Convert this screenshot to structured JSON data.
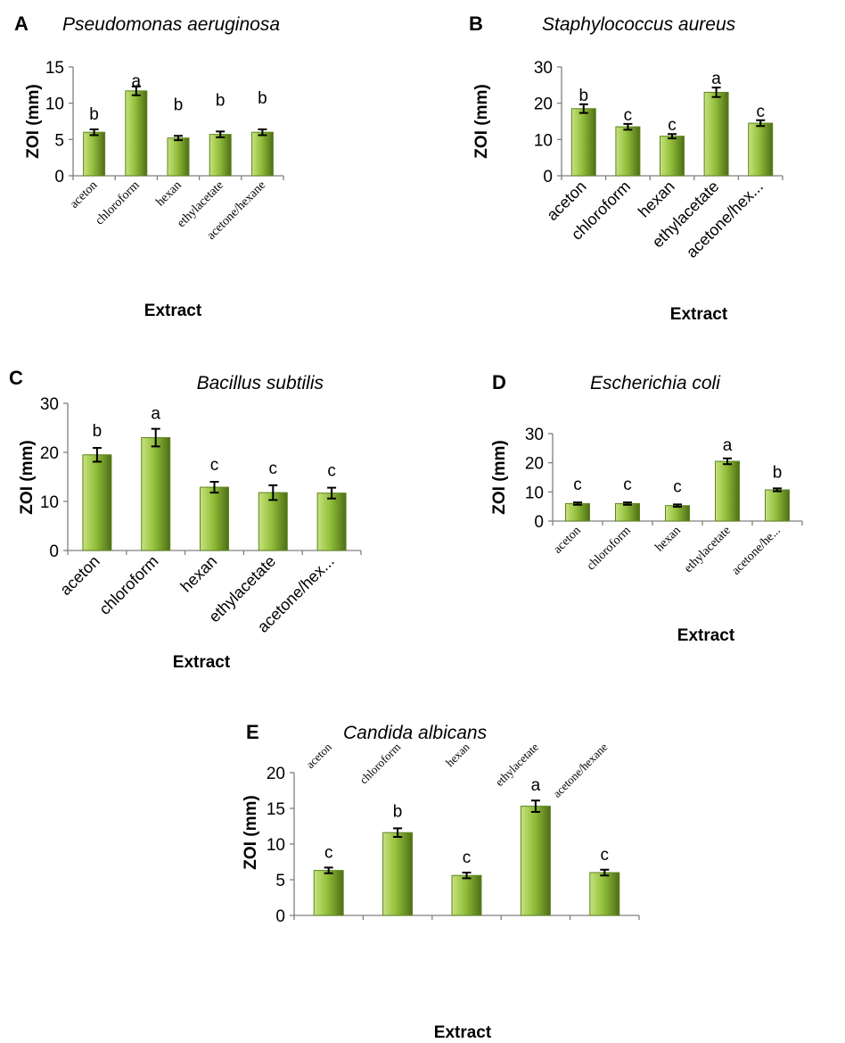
{
  "bar_color": {
    "light": "#c7e27f",
    "mid": "#92bf3a",
    "dark": "#4d6e16",
    "edge": "#5e8420"
  },
  "chart_data": [
    {
      "panel": "A",
      "type": "bar",
      "title": "Pseudomonas aeruginosa",
      "xlabel": "Extract",
      "ylabel": "ZOI (mm)",
      "ylim": [
        0,
        15
      ],
      "yticks": [
        0,
        5,
        10,
        15
      ],
      "categories": [
        "aceton",
        "chloroform",
        "hexan",
        "ethylacetate",
        "acetone/hexane"
      ],
      "values": [
        6.0,
        11.7,
        5.2,
        5.7,
        6.0
      ],
      "errors": [
        0.4,
        0.6,
        0.3,
        0.4,
        0.4
      ],
      "letters": [
        "b",
        "a",
        "b",
        "b",
        "b"
      ]
    },
    {
      "panel": "B",
      "type": "bar",
      "title": "Staphylococcus aureus",
      "xlabel": "Extract",
      "ylabel": "ZOI (mm)",
      "ylim": [
        0,
        30
      ],
      "yticks": [
        0,
        10,
        20,
        30
      ],
      "categories": [
        "aceton",
        "chloroform",
        "hexan",
        "ethylacetate",
        "acetone/hex..."
      ],
      "values": [
        18.5,
        13.5,
        10.9,
        23.0,
        14.5
      ],
      "errors": [
        1.2,
        0.8,
        0.6,
        1.3,
        0.8
      ],
      "letters": [
        "b",
        "c",
        "c",
        "a",
        "c"
      ]
    },
    {
      "panel": "C",
      "type": "bar",
      "title": "Bacillus subtilis",
      "xlabel": "Extract",
      "ylabel": "ZOI (mm)",
      "ylim": [
        0,
        30
      ],
      "yticks": [
        0,
        10,
        20,
        30
      ],
      "categories": [
        "aceton",
        "chloroform",
        "hexan",
        "ethylacetate",
        "acetone/hex..."
      ],
      "values": [
        19.5,
        23.0,
        12.9,
        11.8,
        11.7
      ],
      "errors": [
        1.4,
        1.8,
        1.1,
        1.5,
        1.1
      ],
      "letters": [
        "b",
        "a",
        "c",
        "c",
        "c"
      ]
    },
    {
      "panel": "D",
      "type": "bar",
      "title": "Escherichia coli",
      "xlabel": "Extract",
      "ylabel": "ZOI (mm)",
      "ylim": [
        0,
        30
      ],
      "yticks": [
        0,
        10,
        20,
        30
      ],
      "categories": [
        "aceton",
        "chloroform",
        "hexan",
        "ethylacetate",
        "acetone/he..."
      ],
      "values": [
        6.0,
        6.0,
        5.3,
        20.5,
        10.7
      ],
      "errors": [
        0.4,
        0.4,
        0.4,
        1.0,
        0.5
      ],
      "letters": [
        "c",
        "c",
        "c",
        "a",
        "b"
      ]
    },
    {
      "panel": "E",
      "type": "bar",
      "title": "Candida albicans",
      "xlabel": "Extract",
      "ylabel": "ZOI (mm)",
      "ylim": [
        0,
        20
      ],
      "yticks": [
        0,
        5,
        10,
        15,
        20
      ],
      "categories": [
        "aceton",
        "chloroform",
        "hexan",
        "ethylacetate",
        "acetone/hexane"
      ],
      "values": [
        6.3,
        11.6,
        5.6,
        15.3,
        6.0
      ],
      "errors": [
        0.4,
        0.6,
        0.4,
        0.8,
        0.4
      ],
      "letters": [
        "c",
        "b",
        "c",
        "a",
        "c"
      ]
    }
  ]
}
